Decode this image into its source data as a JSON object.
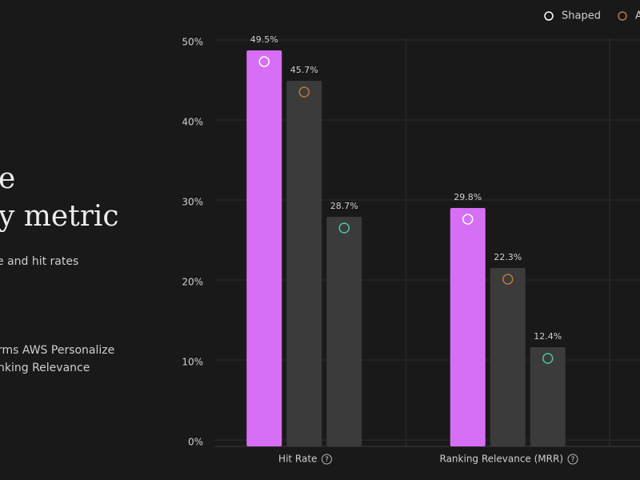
{
  "page": {
    "heading_lines": [
      "e",
      "y metric"
    ],
    "subtitle": "e and hit rates",
    "notes": [
      "rms AWS Personalize",
      "nking Relevance"
    ]
  },
  "chart_data": {
    "type": "bar",
    "categories": [
      "Hit Rate",
      "Ranking Relevance (MRR)"
    ],
    "series": [
      {
        "name": "Shaped",
        "color": "#d66ff5",
        "values": [
          49.5,
          29.8
        ],
        "value_labels": [
          "49.5%",
          "29.8%"
        ]
      },
      {
        "name": "A",
        "color": "#3b3b3b",
        "values": [
          45.7,
          22.3
        ],
        "value_labels": [
          "45.7%",
          "22.3%"
        ]
      },
      {
        "color": "#3b3b3b",
        "values": [
          28.7,
          12.4
        ],
        "value_labels": [
          "28.7%",
          "12.4%"
        ]
      }
    ],
    "ylim": [
      0,
      50
    ],
    "yticks": [
      {
        "value": 0,
        "label": "0%"
      },
      {
        "value": 10,
        "label": "10%"
      },
      {
        "value": 20,
        "label": "20%"
      },
      {
        "value": 30,
        "label": "30%"
      },
      {
        "value": 40,
        "label": "40%"
      },
      {
        "value": 50,
        "label": "50%"
      }
    ],
    "grid": true
  }
}
